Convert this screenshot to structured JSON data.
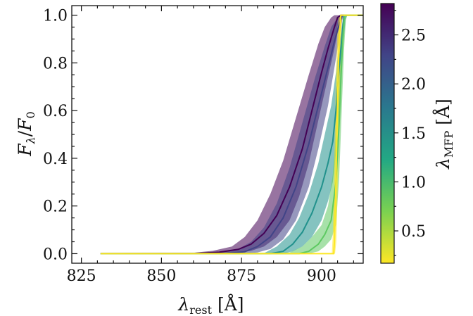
{
  "chart_data": {
    "type": "line",
    "xlabel": "λrest [Å]",
    "ylabel": "Fλ/F0",
    "xlim": [
      822,
      913
    ],
    "ylim": [
      -0.04,
      1.04
    ],
    "xticks": [
      825,
      850,
      875,
      900
    ],
    "yticks": [
      0.0,
      0.2,
      0.4,
      0.6,
      0.8,
      1.0
    ],
    "grid": false,
    "colorbar": {
      "label": "λMFP [Å]",
      "range": [
        0.17,
        2.82
      ],
      "ticks": [
        0.5,
        1.0,
        1.5,
        2.0,
        2.5
      ],
      "colormap": "viridis"
    },
    "series": [
      {
        "mfp": 2.8,
        "color": "#440154",
        "points": [
          [
            831,
            0
          ],
          [
            860,
            0.001
          ],
          [
            868,
            0.006
          ],
          [
            874,
            0.018
          ],
          [
            878,
            0.04
          ],
          [
            882,
            0.085
          ],
          [
            886,
            0.16
          ],
          [
            890,
            0.28
          ],
          [
            894,
            0.44
          ],
          [
            897,
            0.6
          ],
          [
            900,
            0.76
          ],
          [
            902,
            0.86
          ],
          [
            904,
            0.95
          ],
          [
            905,
            0.99
          ],
          [
            906,
            1.0
          ],
          [
            913,
            1.0
          ]
        ],
        "upper": [
          [
            831,
            0
          ],
          [
            860,
            0.004
          ],
          [
            866,
            0.012
          ],
          [
            872,
            0.03
          ],
          [
            876,
            0.07
          ],
          [
            880,
            0.14
          ],
          [
            884,
            0.25
          ],
          [
            888,
            0.39
          ],
          [
            892,
            0.57
          ],
          [
            896,
            0.75
          ],
          [
            899,
            0.88
          ],
          [
            901,
            0.95
          ],
          [
            903,
            0.99
          ],
          [
            904,
            1.0
          ],
          [
            913,
            1.0
          ]
        ],
        "lower": [
          [
            831,
            0
          ],
          [
            868,
            0
          ],
          [
            874,
            0.004
          ],
          [
            878,
            0.012
          ],
          [
            882,
            0.03
          ],
          [
            886,
            0.07
          ],
          [
            890,
            0.14
          ],
          [
            893,
            0.24
          ],
          [
            896,
            0.38
          ],
          [
            899,
            0.56
          ],
          [
            902,
            0.74
          ],
          [
            904,
            0.86
          ],
          [
            905.5,
            0.96
          ],
          [
            906.5,
            1.0
          ],
          [
            913,
            1.0
          ]
        ]
      },
      {
        "mfp": 2.3,
        "color": "#414487",
        "points": [
          [
            831,
            0
          ],
          [
            870,
            0.001
          ],
          [
            876,
            0.008
          ],
          [
            880,
            0.03
          ],
          [
            884,
            0.07
          ],
          [
            888,
            0.15
          ],
          [
            892,
            0.28
          ],
          [
            896,
            0.46
          ],
          [
            899,
            0.62
          ],
          [
            902,
            0.78
          ],
          [
            904,
            0.89
          ],
          [
            905.5,
            0.96
          ],
          [
            906.5,
            1.0
          ],
          [
            913,
            1.0
          ]
        ],
        "upper": [
          [
            831,
            0
          ],
          [
            868,
            0.003
          ],
          [
            874,
            0.02
          ],
          [
            878,
            0.05
          ],
          [
            882,
            0.11
          ],
          [
            886,
            0.21
          ],
          [
            890,
            0.36
          ],
          [
            894,
            0.55
          ],
          [
            898,
            0.74
          ],
          [
            901,
            0.87
          ],
          [
            903,
            0.95
          ],
          [
            905,
            0.99
          ],
          [
            906,
            1.0
          ],
          [
            913,
            1.0
          ]
        ],
        "lower": [
          [
            831,
            0
          ],
          [
            874,
            0
          ],
          [
            880,
            0.005
          ],
          [
            884,
            0.02
          ],
          [
            888,
            0.06
          ],
          [
            892,
            0.14
          ],
          [
            896,
            0.28
          ],
          [
            899,
            0.44
          ],
          [
            902,
            0.62
          ],
          [
            904,
            0.78
          ],
          [
            905.5,
            0.9
          ],
          [
            906.5,
            0.98
          ],
          [
            907,
            1.0
          ],
          [
            913,
            1.0
          ]
        ]
      },
      {
        "mfp": 1.4,
        "color": "#21918c",
        "points": [
          [
            831,
            0
          ],
          [
            884,
            0
          ],
          [
            888,
            0.01
          ],
          [
            891,
            0.04
          ],
          [
            894,
            0.09
          ],
          [
            897,
            0.17
          ],
          [
            900,
            0.28
          ],
          [
            902,
            0.38
          ],
          [
            903.5,
            0.47
          ],
          [
            904.5,
            0.6
          ],
          [
            905.5,
            0.78
          ],
          [
            906.5,
            0.93
          ],
          [
            907,
            1.0
          ],
          [
            913,
            1.0
          ]
        ],
        "upper": [
          [
            831,
            0
          ],
          [
            882,
            0.002
          ],
          [
            886,
            0.03
          ],
          [
            890,
            0.08
          ],
          [
            893,
            0.15
          ],
          [
            896,
            0.25
          ],
          [
            899,
            0.38
          ],
          [
            901,
            0.5
          ],
          [
            903,
            0.62
          ],
          [
            904.5,
            0.76
          ],
          [
            905.5,
            0.88
          ],
          [
            906.5,
            0.97
          ],
          [
            907,
            1.0
          ],
          [
            913,
            1.0
          ]
        ],
        "lower": [
          [
            831,
            0
          ],
          [
            888,
            0
          ],
          [
            891,
            0.01
          ],
          [
            894,
            0.03
          ],
          [
            897,
            0.07
          ],
          [
            900,
            0.14
          ],
          [
            902,
            0.22
          ],
          [
            903.5,
            0.3
          ],
          [
            904.5,
            0.42
          ],
          [
            905.5,
            0.62
          ],
          [
            906.5,
            0.84
          ],
          [
            907.5,
            0.98
          ],
          [
            908,
            1.0
          ],
          [
            913,
            1.0
          ]
        ]
      },
      {
        "mfp": 0.9,
        "color": "#5ec962",
        "points": [
          [
            831,
            0
          ],
          [
            893,
            0
          ],
          [
            896,
            0.01
          ],
          [
            899,
            0.04
          ],
          [
            901,
            0.08
          ],
          [
            903,
            0.14
          ],
          [
            904.5,
            0.3
          ],
          [
            905.5,
            0.55
          ],
          [
            906.2,
            0.78
          ],
          [
            906.8,
            0.94
          ],
          [
            907.2,
            1.0
          ],
          [
            913,
            1.0
          ]
        ],
        "upper": [
          [
            831,
            0
          ],
          [
            890,
            0.005
          ],
          [
            894,
            0.03
          ],
          [
            897,
            0.07
          ],
          [
            900,
            0.12
          ],
          [
            902,
            0.2
          ],
          [
            903.5,
            0.33
          ],
          [
            904.5,
            0.5
          ],
          [
            905.5,
            0.72
          ],
          [
            906.3,
            0.9
          ],
          [
            907,
            1.0
          ],
          [
            913,
            1.0
          ]
        ],
        "lower": [
          [
            831,
            0
          ],
          [
            896,
            0
          ],
          [
            899,
            0.01
          ],
          [
            901,
            0.03
          ],
          [
            903,
            0.06
          ],
          [
            904.5,
            0.12
          ],
          [
            905.5,
            0.32
          ],
          [
            906.3,
            0.6
          ],
          [
            907,
            0.85
          ],
          [
            907.6,
            0.98
          ],
          [
            908,
            1.0
          ],
          [
            913,
            1.0
          ]
        ]
      },
      {
        "mfp": 0.2,
        "color": "#fde725",
        "points": [
          [
            831,
            0
          ],
          [
            903.8,
            0
          ],
          [
            904,
            0.05
          ],
          [
            904.5,
            0.3
          ],
          [
            905,
            0.65
          ],
          [
            905.5,
            0.9
          ],
          [
            906,
            1.0
          ],
          [
            913,
            1.0
          ]
        ],
        "upper": [
          [
            831,
            0
          ],
          [
            903.2,
            0
          ],
          [
            903.5,
            0.08
          ],
          [
            904,
            0.4
          ],
          [
            904.5,
            0.75
          ],
          [
            905,
            0.95
          ],
          [
            905.5,
            1.0
          ],
          [
            913,
            1.0
          ]
        ],
        "lower": [
          [
            831,
            0
          ],
          [
            904.2,
            0
          ],
          [
            904.6,
            0.05
          ],
          [
            905.2,
            0.35
          ],
          [
            905.8,
            0.75
          ],
          [
            906.3,
            0.97
          ],
          [
            906.6,
            1.0
          ],
          [
            913,
            1.0
          ]
        ]
      }
    ]
  }
}
